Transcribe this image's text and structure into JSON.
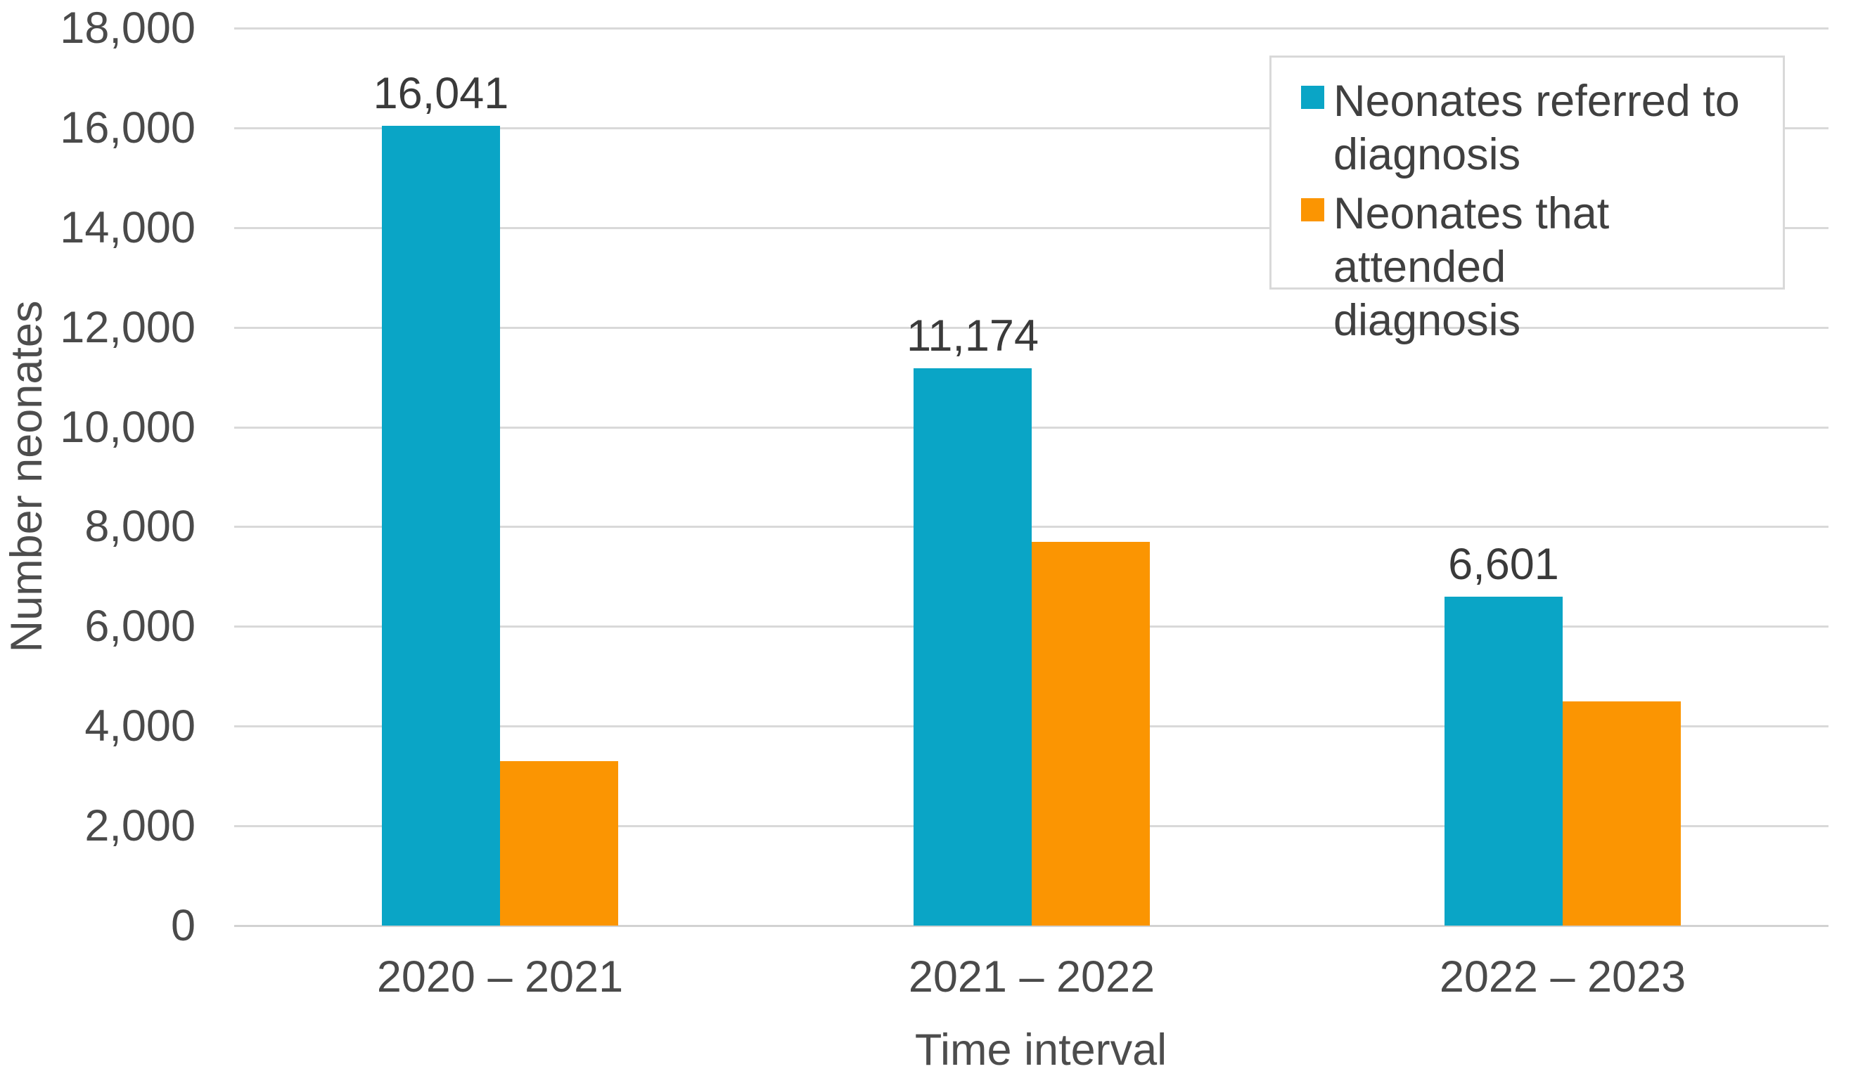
{
  "chart_data": {
    "type": "bar",
    "categories": [
      "2020 – 2021",
      "2021 – 2022",
      "2022 – 2023"
    ],
    "series": [
      {
        "name": "Neonates referred to diagnosis",
        "color": "#0aa5c6",
        "values": [
          16041,
          11174,
          6601
        ],
        "data_labels": [
          "16,041",
          "11,174",
          "6,601"
        ]
      },
      {
        "name": "Neonates that attended diagnosis",
        "color": "#fb9502",
        "values": [
          3300,
          7700,
          4500
        ],
        "data_labels": [
          null,
          null,
          null
        ]
      }
    ],
    "title": "",
    "xlabel": "Time interval",
    "ylabel": "Number neonates",
    "ylim": [
      0,
      18000
    ],
    "ytick_step": 2000,
    "ytick_labels": [
      "18,000",
      "16,000",
      "14,000",
      "12,000",
      "10,000",
      "8,000",
      "6,000",
      "4,000",
      "2,000",
      "0"
    ],
    "grid": "horizontal",
    "legend_position": "top-right"
  },
  "legend": {
    "items": [
      {
        "swatch_color": "#0aa5c6",
        "lines": [
          "Neonates referred to",
          "diagnosis"
        ]
      },
      {
        "swatch_color": "#fb9502",
        "lines": [
          "Neonates that attended",
          "diagnosis"
        ]
      }
    ]
  },
  "colors": {
    "background": "#ffffff",
    "gridline": "#d9d9d9",
    "axis_text": "#4a4a4a",
    "data_label_text": "#3a3a3a",
    "legend_border": "#d9d9d9"
  }
}
